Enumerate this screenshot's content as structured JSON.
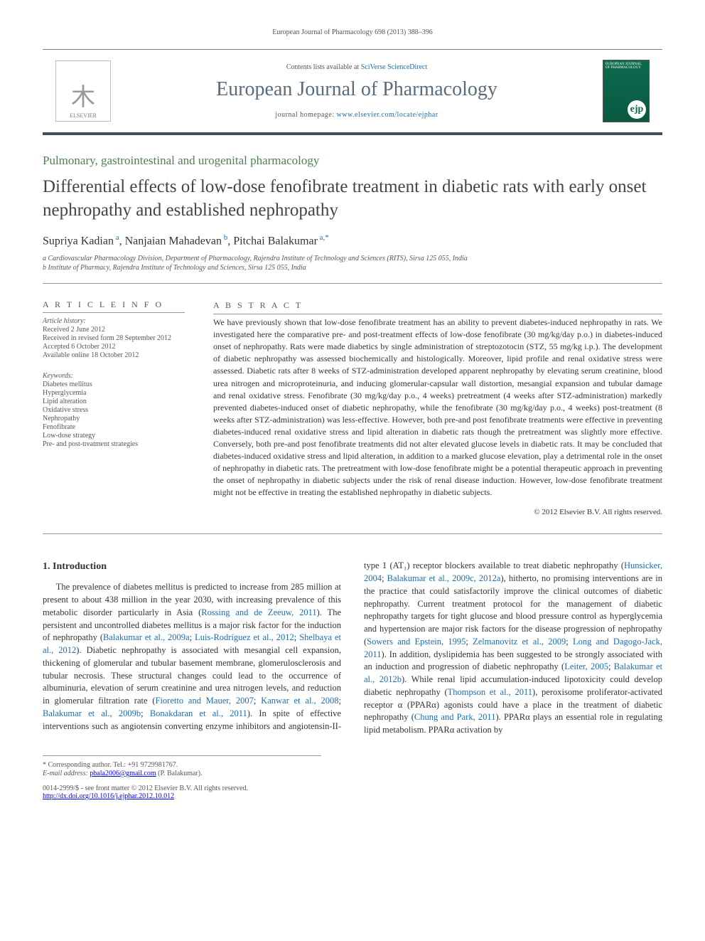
{
  "running_header": "European Journal of Pharmacology 698 (2013) 388–396",
  "masthead": {
    "contents_prefix": "Contents lists available at ",
    "contents_link": "SciVerse ScienceDirect",
    "journal_name": "European Journal of Pharmacology",
    "homepage_prefix": "journal homepage: ",
    "homepage_url": "www.elsevier.com/locate/ejphar",
    "publisher_logo_label": "ELSEVIER",
    "cover_logo_text": "ejp"
  },
  "section_name": "Pulmonary, gastrointestinal and urogenital pharmacology",
  "title": "Differential effects of low-dose fenofibrate treatment in diabetic rats with early onset nephropathy and established nephropathy",
  "authors_html": "Supriya Kadian<sup> a</sup>, Nanjaian Mahadevan<sup> b</sup>, Pitchai Balakumar<sup> a,*</sup>",
  "affiliations": [
    "a Cardiovascular Pharmacology Division, Department of Pharmacology, Rajendra Institute of Technology and Sciences (RITS), Sirsa 125 055, India",
    "b Institute of Pharmacy, Rajendra Institute of Technology and Sciences, Sirsa 125 055, India"
  ],
  "article_info": {
    "heading": "A R T I C L E   I N F O",
    "history_label": "Article history:",
    "received": "Received 2 June 2012",
    "revised": "Received in revised form 28 September 2012",
    "accepted": "Accepted 6 October 2012",
    "online": "Available online 18 October 2012",
    "keywords_label": "Keywords:",
    "keywords": [
      "Diabetes mellitus",
      "Hyperglycemia",
      "Lipid alteration",
      "Oxidative stress",
      "Nephropathy",
      "Fenofibrate",
      "Low-dose strategy",
      "Pre- and post-treatment strategies"
    ]
  },
  "abstract": {
    "heading": "A B S T R A C T",
    "text": "We have previously shown that low-dose fenofibrate treatment has an ability to prevent diabetes-induced nephropathy in rats. We investigated here the comparative pre- and post-treatment effects of low-dose fenofibrate (30 mg/kg/day p.o.) in diabetes-induced onset of nephropathy. Rats were made diabetics by single administration of streptozotocin (STZ, 55 mg/kg i.p.). The development of diabetic nephropathy was assessed biochemically and histologically. Moreover, lipid profile and renal oxidative stress were assessed. Diabetic rats after 8 weeks of STZ-administration developed apparent nephropathy by elevating serum creatinine, blood urea nitrogen and microproteinuria, and inducing glomerular-capsular wall distortion, mesangial expansion and tubular damage and renal oxidative stress. Fenofibrate (30 mg/kg/day p.o., 4 weeks) pretreatment (4 weeks after STZ-administration) markedly prevented diabetes-induced onset of diabetic nephropathy, while the fenofibrate (30 mg/kg/day p.o., 4 weeks) post-treatment (8 weeks after STZ-administration) was less-effective. However, both pre-and post fenofibrate treatments were effective in preventing diabetes-induced renal oxidative stress and lipid alteration in diabetic rats though the pretreatment was slightly more effective. Conversely, both pre-and post fenofibrate treatments did not alter elevated glucose levels in diabetic rats. It may be concluded that diabetes-induced oxidative stress and lipid alteration, in addition to a marked glucose elevation, play a detrimental role in the onset of nephropathy in diabetic rats. The pretreatment with low-dose fenofibrate might be a potential therapeutic approach in preventing the onset of nephropathy in diabetic subjects under the risk of renal disease induction. However, low-dose fenofibrate treatment might not be effective in treating the established nephropathy in diabetic subjects.",
    "copyright": "© 2012 Elsevier B.V. All rights reserved."
  },
  "body": {
    "section_heading": "1. Introduction",
    "text_parts": [
      "The prevalence of diabetes mellitus is predicted to increase from 285 million at present to about 438 million in the year 2030, with increasing prevalence of this metabolic disorder particularly in Asia (",
      "Rossing and de Zeeuw, 2011",
      "). The persistent and uncontrolled diabetes mellitus is a major risk factor for the induction of nephropathy (",
      "Balakumar et al., 2009a",
      "; ",
      "Luis-Rodríguez et al., 2012",
      "; ",
      "Shelbaya et al., 2012",
      "). Diabetic nephropathy is associated with mesangial cell expansion, thickening of glomerular and tubular basement membrane, glomerulosclerosis and tubular necrosis. These structural changes could lead to the occurrence of albuminuria, elevation of serum creatinine and urea nitrogen levels, and reduction in glomerular filtration rate (",
      "Fioretto and Mauer, 2007",
      "; ",
      "Kanwar et al., 2008",
      "; ",
      "Balakumar et al., 2009b",
      "; ",
      "Bonakdaran et al., 2011",
      "). In spite of effective interventions such as angiotensin converting enzyme inhibitors and angiotensin-II-type 1 (AT₁) receptor blockers available to treat diabetic nephropathy (",
      "Hunsicker, 2004",
      "; ",
      "Balakumar et al., 2009c, 2012a",
      "), hitherto, no promising interventions are in the practice that could satisfactorily improve the clinical outcomes of diabetic nephropathy. Current treatment protocol for the management of diabetic nephropathy targets for tight glucose and blood pressure control as hyperglycemia and hypertension are major risk factors for the disease progression of nephropathy (",
      "Sowers and Epstein, 1995",
      "; ",
      "Zelmanovitz et al., 2009",
      "; ",
      "Long and Dagogo-Jack, 2011",
      "). In addition, dyslipidemia has been suggested to be strongly associated with an induction and progression of diabetic nephropathy (",
      "Leiter, 2005",
      "; ",
      "Balakumar et al., 2012b",
      "). While renal lipid accumulation-induced lipotoxicity could develop diabetic nephropathy (",
      "Thompson et al., 2011",
      "), peroxisome proliferator-activated receptor α (PPARα) agonists could have a place in the treatment of diabetic nephropathy (",
      "Chung and Park, 2011",
      "). PPARα plays an essential role in regulating lipid metabolism. PPARα activation by"
    ]
  },
  "footnote": {
    "corr": "* Corresponding author. Tel.: +91 9729981767.",
    "email_label": "E-mail address: ",
    "email": "pbala2006@gmail.com",
    "email_name": " (P. Balakumar).",
    "issn": "0014-2999/$ - see front matter © 2012 Elsevier B.V. All rights reserved.",
    "doi": "http://dx.doi.org/10.1016/j.ejphar.2012.10.012"
  }
}
